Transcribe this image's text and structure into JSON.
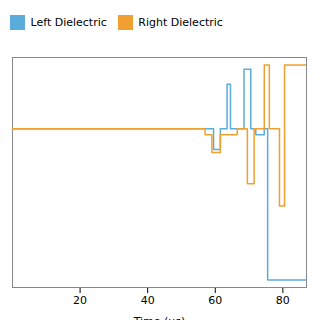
{
  "chart_data": {
    "type": "line",
    "title": "",
    "xlabel": "Time (μs)",
    "ylabel": "",
    "xlim": [
      0,
      87
    ],
    "ylim": [
      -1.05,
      0.5
    ],
    "xticks": [
      20,
      40,
      60,
      80
    ],
    "yticks": [],
    "tick_labels": "x",
    "legend": "upper left",
    "grid": false,
    "series": [
      {
        "name": "Left Dielectric",
        "color": "#5aacda",
        "x": [
          0,
          57.0,
          57.0,
          59.5,
          59.5,
          61.5,
          61.5,
          63.5,
          63.5,
          64.5,
          64.5,
          67.0,
          67.0,
          68.5,
          68.5,
          70.5,
          70.5,
          72.0,
          72.0,
          74.5,
          74.5,
          75.5,
          75.5,
          87
        ],
        "values": [
          0.02,
          0.02,
          0.02,
          0.02,
          -0.12,
          -0.12,
          0.02,
          0.02,
          0.32,
          0.32,
          0.02,
          0.02,
          0.02,
          0.02,
          0.42,
          0.42,
          0.02,
          0.02,
          -0.02,
          -0.02,
          0.02,
          0.02,
          -1.0,
          -1.0
        ]
      },
      {
        "name": "Right Dielectric",
        "color": "#f0a030",
        "x": [
          0,
          57.0,
          57.0,
          59.0,
          59.0,
          61.5,
          61.5,
          63.0,
          63.0,
          64.5,
          64.5,
          66.5,
          66.5,
          69.5,
          69.5,
          71.5,
          71.5,
          74.5,
          74.5,
          76.0,
          76.0,
          79.0,
          79.0,
          80.5,
          80.5,
          87
        ],
        "values": [
          0.02,
          0.02,
          -0.02,
          -0.02,
          -0.14,
          -0.14,
          -0.02,
          -0.02,
          -0.02,
          -0.02,
          -0.02,
          -0.02,
          0.02,
          0.02,
          -0.35,
          -0.35,
          0.02,
          0.02,
          0.45,
          0.45,
          0.02,
          0.02,
          -0.5,
          -0.5,
          0.45,
          0.45
        ]
      }
    ]
  }
}
